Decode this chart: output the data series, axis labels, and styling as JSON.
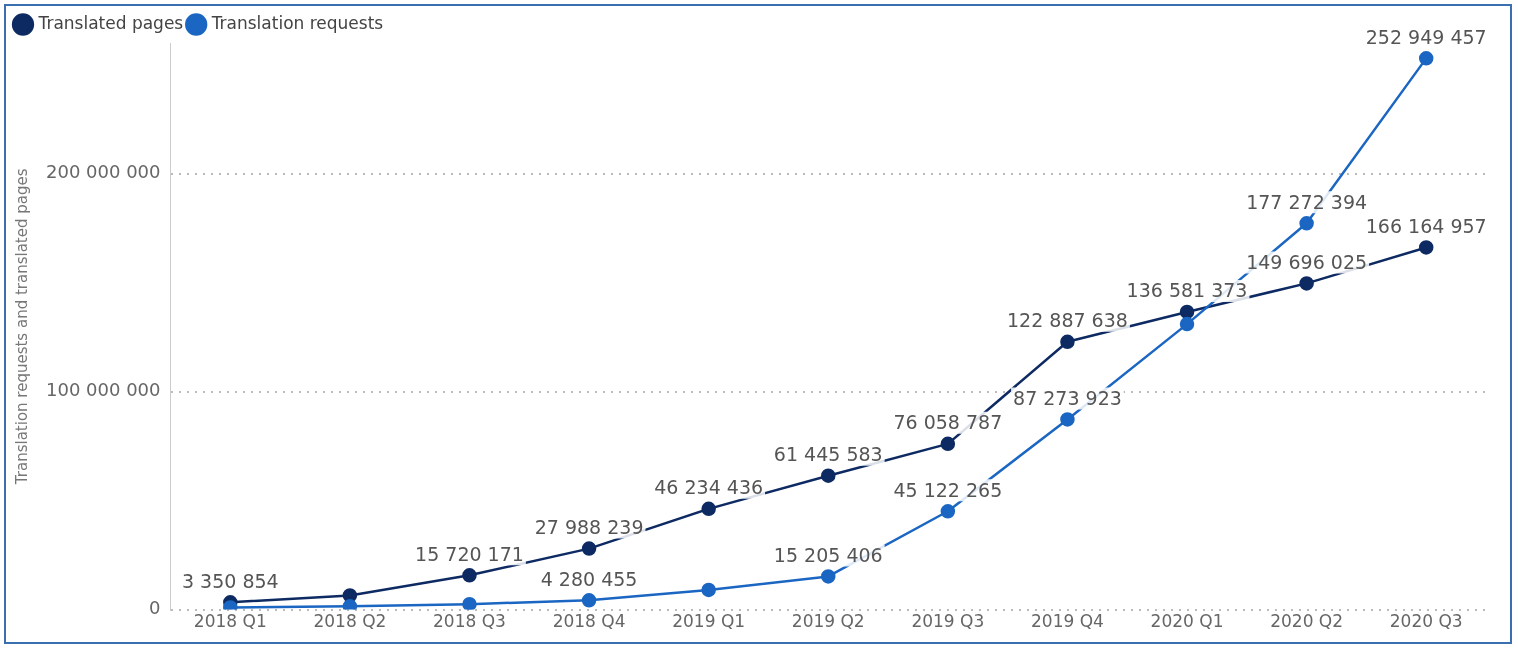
{
  "chart_data": {
    "type": "line",
    "ylabel": "Translation requests and translated pages",
    "categories": [
      "2018 Q1",
      "2018 Q2",
      "2018 Q3",
      "2018 Q4",
      "2019 Q1",
      "2019 Q2",
      "2019 Q3",
      "2019 Q4",
      "2020 Q1",
      "2020 Q2",
      "2020 Q3"
    ],
    "series": [
      {
        "name": "Translated pages",
        "color": "#0d2a63",
        "values": [
          3350854,
          6500000,
          15720171,
          27988239,
          46234436,
          61445583,
          76058787,
          122887638,
          136581373,
          149696025,
          166164957
        ],
        "value_labels": [
          "3 350 854",
          null,
          "15 720 171",
          "27 988 239",
          "46 234 436",
          "61 445 583",
          "76 058 787",
          "122 887 638",
          "136 581 373",
          "149 696 025",
          "166 164 957"
        ]
      },
      {
        "name": "Translation requests",
        "color": "#1a66c2",
        "values": [
          1000000,
          1500000,
          2500000,
          4280455,
          9000000,
          15205406,
          45122265,
          87273923,
          131000000,
          177272394,
          252949457
        ],
        "value_labels": [
          null,
          null,
          null,
          "4 280 455",
          null,
          "15 205 406",
          "45 122 265",
          "87 273 923",
          null,
          "177 272 394",
          "252 949 457"
        ]
      }
    ],
    "ylim": [
      0,
      260000000
    ],
    "yticks": [
      {
        "value": 0,
        "label": "0"
      },
      {
        "value": 100000000,
        "label": "100 000 000"
      },
      {
        "value": 200000000,
        "label": "200 000 000"
      }
    ],
    "grid": "y",
    "legend": "top left",
    "marker": "circle",
    "line_style": "solid"
  }
}
